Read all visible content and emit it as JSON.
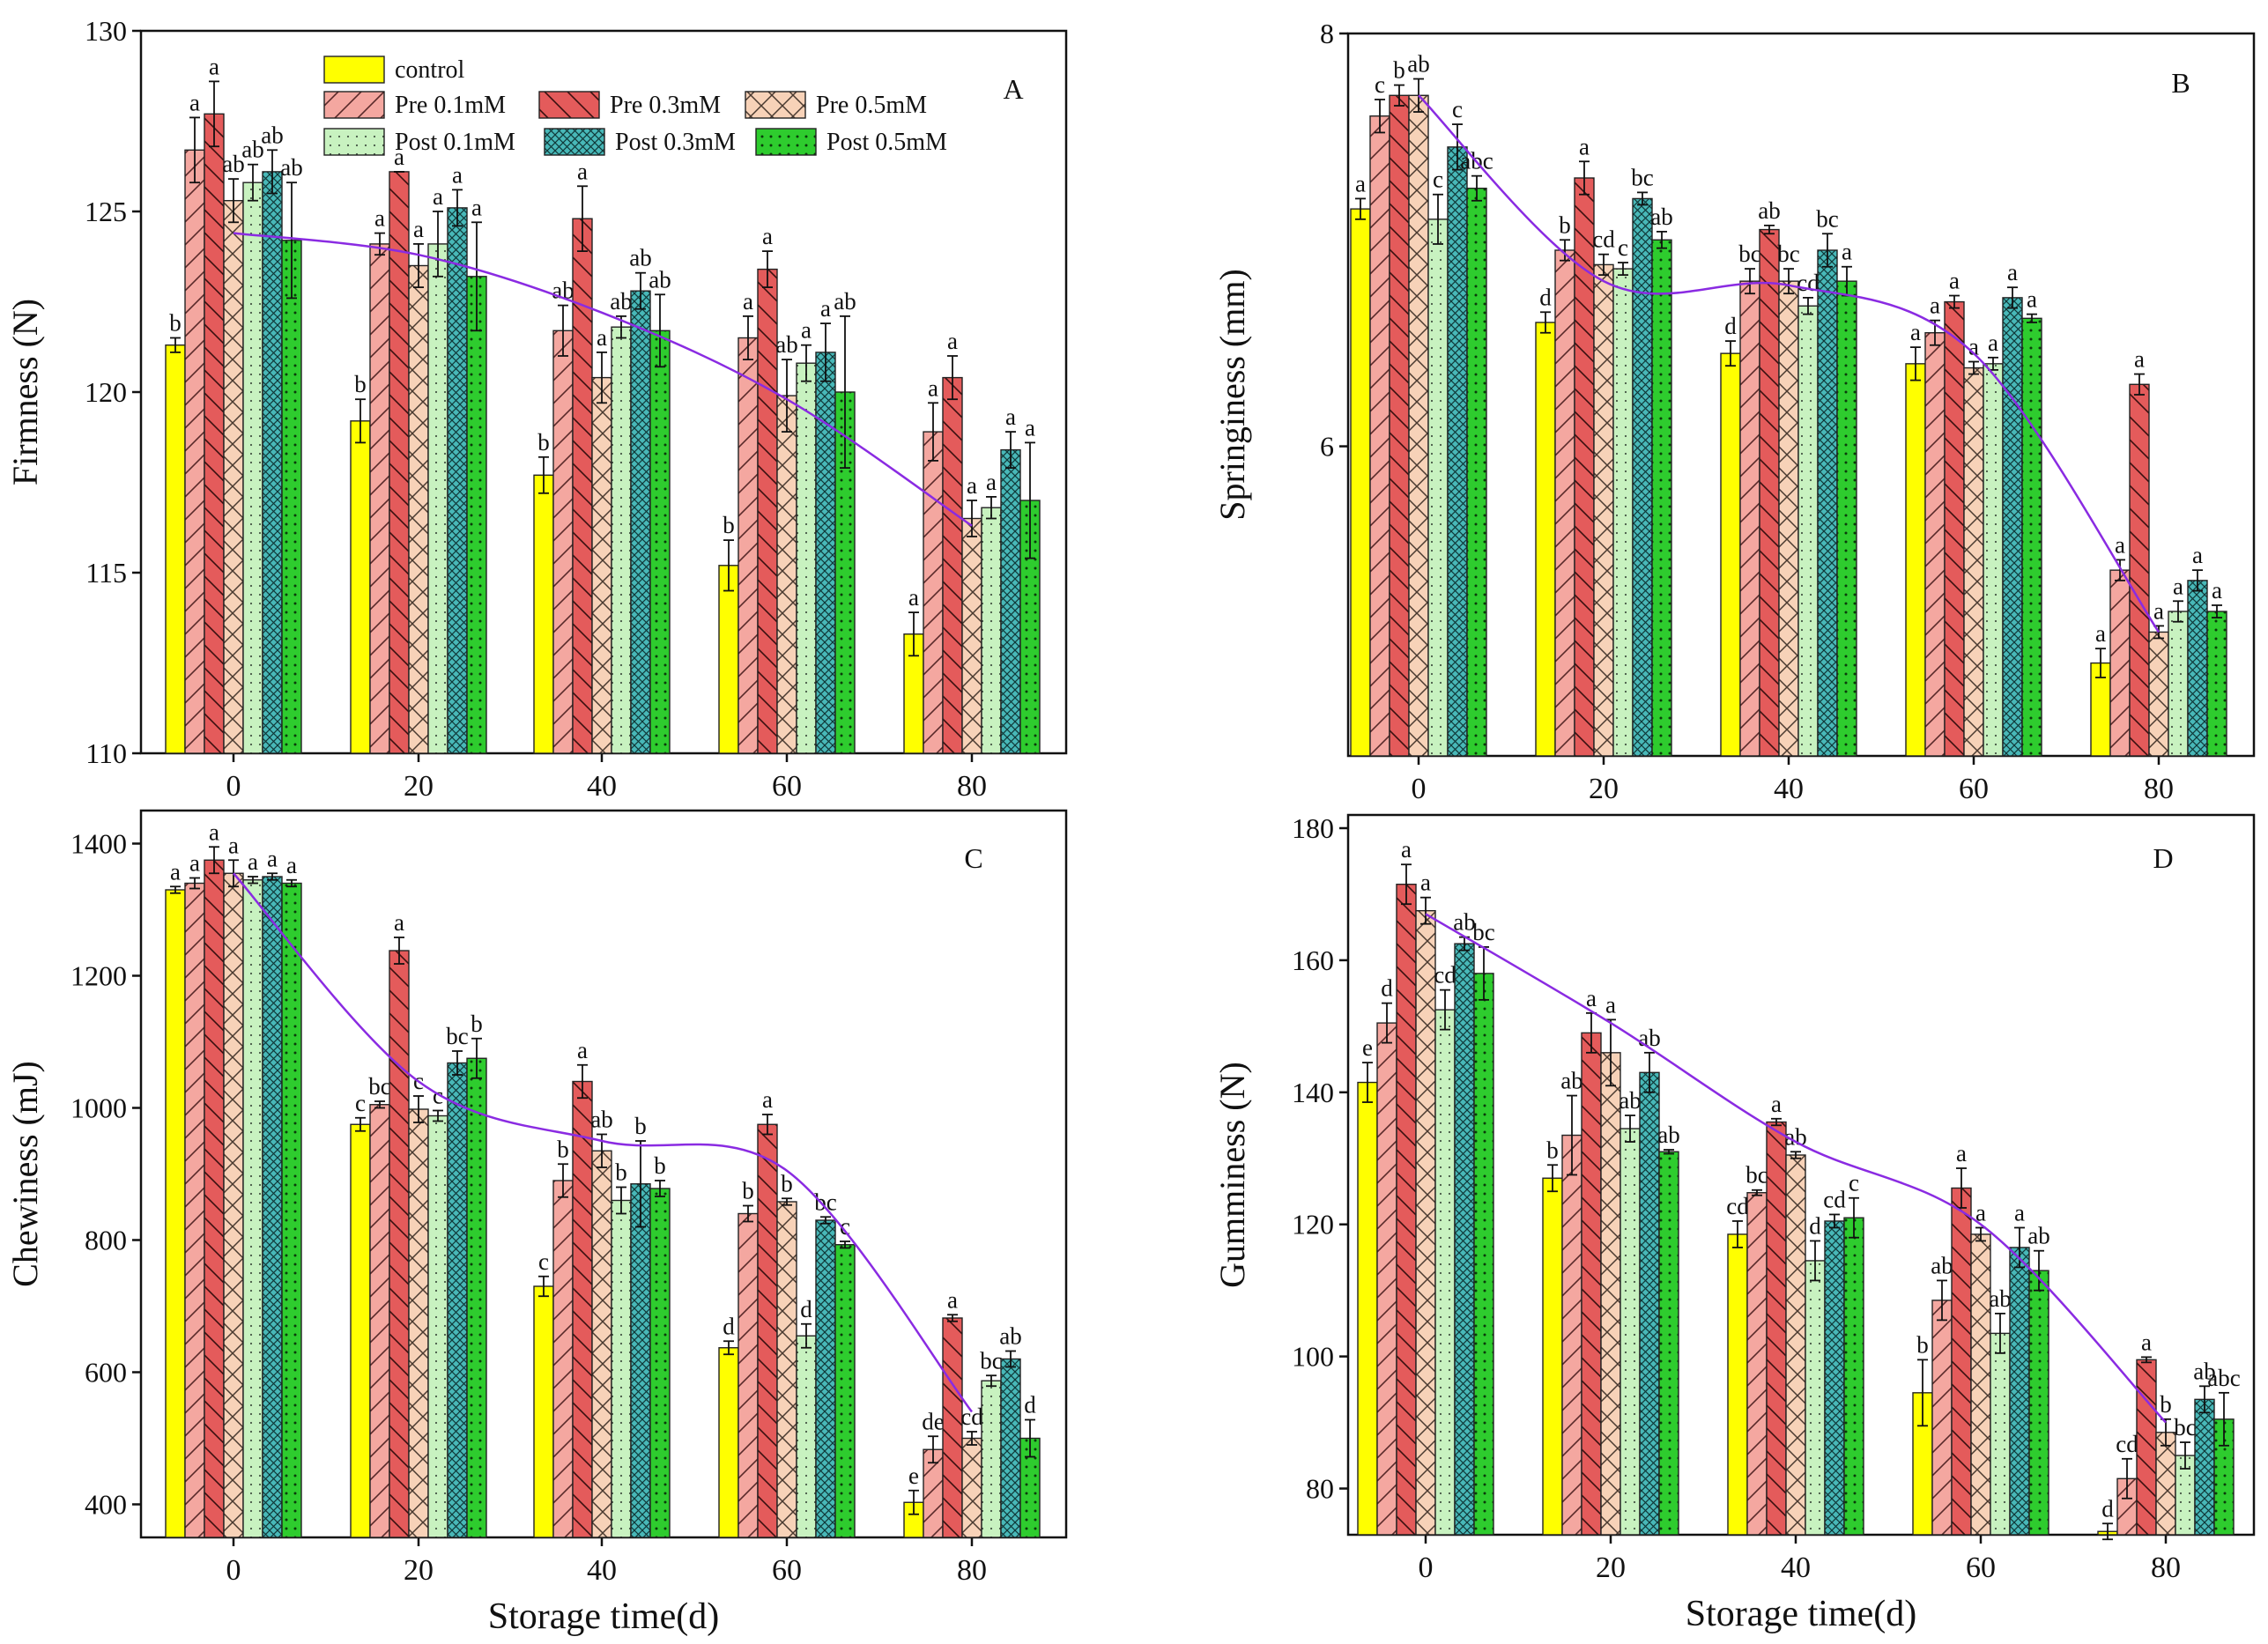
{
  "colors": {
    "control": "#ffff00",
    "pre01": "#f4a7a0",
    "pre03": "#e45b5b",
    "pre05": "#f7d2b8",
    "post01": "#c8f2c0",
    "post03": "#48b8b8",
    "post05": "#2ecc2e",
    "trend": "#8a2be2"
  },
  "legend": [
    "control",
    "Pre 0.1mM",
    "Pre 0.3mM",
    "Pre 0.5mM",
    "Post 0.1mM",
    "Post 0.3mM",
    "Post 0.5mM"
  ],
  "chart_data": [
    {
      "type": "bar",
      "panel": "A",
      "ylabel": "Firmness (N)",
      "xlabel": "",
      "categories": [
        "0",
        "20",
        "40",
        "60",
        "80"
      ],
      "ylim": [
        110,
        130
      ],
      "yticks": [
        "110",
        "115",
        "120",
        "125",
        "130"
      ],
      "series": [
        {
          "name": "control",
          "values": [
            121.3,
            119.2,
            117.7,
            115.2,
            113.3
          ],
          "errors": [
            0.2,
            0.6,
            0.5,
            0.7,
            0.6
          ],
          "labels": [
            "b",
            "b",
            "b",
            "b",
            "a"
          ]
        },
        {
          "name": "Pre 0.1mM",
          "values": [
            126.7,
            124.1,
            121.7,
            121.5,
            118.9
          ],
          "errors": [
            0.9,
            0.3,
            0.7,
            0.6,
            0.8
          ],
          "labels": [
            "a",
            "a",
            "ab",
            "a",
            "a"
          ]
        },
        {
          "name": "Pre 0.3mM",
          "values": [
            127.7,
            126.1,
            124.8,
            123.4,
            120.4
          ],
          "errors": [
            0.9,
            0.0,
            0.9,
            0.5,
            0.6
          ],
          "labels": [
            "a",
            "a",
            "a",
            "a",
            "a"
          ]
        },
        {
          "name": "Pre 0.5mM",
          "values": [
            125.3,
            123.5,
            120.4,
            119.9,
            116.5
          ],
          "errors": [
            0.6,
            0.6,
            0.7,
            1.0,
            0.5
          ],
          "labels": [
            "ab",
            "a",
            "a",
            "ab",
            "a"
          ]
        },
        {
          "name": "Post 0.1mM",
          "values": [
            125.8,
            124.1,
            121.8,
            120.8,
            116.8
          ],
          "errors": [
            0.5,
            0.9,
            0.3,
            0.5,
            0.3
          ],
          "labels": [
            "ab",
            "a",
            "ab",
            "a",
            "a"
          ]
        },
        {
          "name": "Post 0.3mM",
          "values": [
            126.1,
            125.1,
            122.8,
            121.1,
            118.4
          ],
          "errors": [
            0.6,
            0.5,
            0.5,
            0.8,
            0.5
          ],
          "labels": [
            "ab",
            "a",
            "ab",
            "a",
            "a"
          ]
        },
        {
          "name": "Post 0.5mM",
          "values": [
            124.2,
            123.2,
            121.7,
            120.0,
            117.0
          ],
          "errors": [
            1.6,
            1.5,
            1.0,
            2.1,
            1.6
          ],
          "labels": [
            "ab",
            "a",
            "ab",
            "ab",
            "a"
          ]
        }
      ],
      "trend": [
        124.4,
        123.8,
        122.2,
        119.8,
        116.3
      ]
    },
    {
      "type": "bar",
      "panel": "B",
      "ylabel": "Springiness (mm)",
      "xlabel": "",
      "categories": [
        "0",
        "20",
        "40",
        "60",
        "80"
      ],
      "ylim": [
        4.5,
        8
      ],
      "yticks": [
        "6",
        "8"
      ],
      "tickvalues": [
        6,
        8
      ],
      "series": [
        {
          "name": "control",
          "values": [
            7.15,
            6.6,
            6.45,
            6.4,
            4.95
          ],
          "errors": [
            0.05,
            0.05,
            0.06,
            0.08,
            0.07
          ],
          "labels": [
            "a",
            "d",
            "d",
            "a",
            "a"
          ]
        },
        {
          "name": "Pre 0.1mM",
          "values": [
            7.6,
            6.95,
            6.8,
            6.55,
            5.4
          ],
          "errors": [
            0.08,
            0.05,
            0.06,
            0.06,
            0.05
          ],
          "labels": [
            "c",
            "b",
            "bc",
            "a",
            "a"
          ]
        },
        {
          "name": "Pre 0.3mM",
          "values": [
            7.7,
            7.3,
            7.05,
            6.7,
            6.3
          ],
          "errors": [
            0.05,
            0.08,
            0.02,
            0.03,
            0.05
          ],
          "labels": [
            "b",
            "a",
            "ab",
            "a",
            "a"
          ]
        },
        {
          "name": "Pre 0.5mM",
          "values": [
            7.7,
            6.88,
            6.8,
            6.38,
            5.1
          ],
          "errors": [
            0.08,
            0.05,
            0.06,
            0.03,
            0.03
          ],
          "labels": [
            "ab",
            "cd",
            "bc",
            "a",
            "a"
          ]
        },
        {
          "name": "Post 0.1mM",
          "values": [
            7.1,
            6.86,
            6.68,
            6.4,
            5.2
          ],
          "errors": [
            0.12,
            0.03,
            0.04,
            0.03,
            0.05
          ],
          "labels": [
            "c",
            "c",
            "cd",
            "a",
            "a"
          ]
        },
        {
          "name": "Post 0.3mM",
          "values": [
            7.45,
            7.2,
            6.95,
            6.72,
            5.35
          ],
          "errors": [
            0.11,
            0.03,
            0.08,
            0.05,
            0.05
          ],
          "labels": [
            "c",
            "bc",
            "bc",
            "a",
            "a"
          ]
        },
        {
          "name": "Post 0.5mM",
          "values": [
            7.25,
            7.0,
            6.8,
            6.62,
            5.2
          ],
          "errors": [
            0.06,
            0.04,
            0.07,
            0.02,
            0.03
          ],
          "labels": [
            "abc",
            "ab",
            "a",
            "a",
            "a"
          ]
        }
      ],
      "trend": [
        7.7,
        6.8,
        6.78,
        6.45,
        5.1
      ]
    },
    {
      "type": "bar",
      "panel": "C",
      "ylabel": "Chewiness (mJ)",
      "xlabel": "Storage time(d)",
      "categories": [
        "0",
        "20",
        "40",
        "60",
        "80"
      ],
      "ylim": [
        350,
        1450
      ],
      "yticks": [
        "400",
        "600",
        "800",
        "1000",
        "1200",
        "1400"
      ],
      "series": [
        {
          "name": "control",
          "values": [
            1330,
            975,
            730,
            637,
            403
          ],
          "errors": [
            5,
            10,
            15,
            10,
            18
          ],
          "labels": [
            "a",
            "c",
            "c",
            "d",
            "e"
          ]
        },
        {
          "name": "Pre 0.1mM",
          "values": [
            1340,
            1005,
            890,
            840,
            483
          ],
          "errors": [
            8,
            5,
            25,
            12,
            20
          ],
          "labels": [
            "a",
            "bc",
            "b",
            "b",
            "de"
          ]
        },
        {
          "name": "Pre 0.3mM",
          "values": [
            1375,
            1238,
            1040,
            975,
            682
          ],
          "errors": [
            20,
            20,
            25,
            15,
            5
          ],
          "labels": [
            "a",
            "a",
            "a",
            "a",
            "a"
          ]
        },
        {
          "name": "Pre 0.5mM",
          "values": [
            1355,
            998,
            935,
            858,
            500
          ],
          "errors": [
            20,
            20,
            25,
            5,
            10
          ],
          "labels": [
            "a",
            "c",
            "ab",
            "b",
            "cd"
          ]
        },
        {
          "name": "Post 0.1mM",
          "values": [
            1345,
            988,
            860,
            655,
            587
          ],
          "errors": [
            5,
            8,
            20,
            18,
            8
          ],
          "labels": [
            "a",
            "c",
            "b",
            "d",
            "bc"
          ]
        },
        {
          "name": "Post 0.3mM",
          "values": [
            1350,
            1068,
            885,
            830,
            620
          ],
          "errors": [
            5,
            18,
            65,
            5,
            12
          ],
          "labels": [
            "a",
            "bc",
            "b",
            "bc",
            "ab"
          ]
        },
        {
          "name": "Post 0.5mM",
          "values": [
            1340,
            1075,
            878,
            793,
            500
          ],
          "errors": [
            5,
            30,
            12,
            5,
            28
          ],
          "labels": [
            "a",
            "b",
            "b",
            "c",
            "d"
          ]
        }
      ],
      "trend": [
        1355,
        1040,
        950,
        905,
        540
      ]
    },
    {
      "type": "bar",
      "panel": "D",
      "ylabel": "Gumminess (N)",
      "xlabel": "Storage time(d)",
      "categories": [
        "0",
        "20",
        "40",
        "60",
        "80"
      ],
      "ylim": [
        73,
        182
      ],
      "yticks": [
        "80",
        "100",
        "120",
        "140",
        "160",
        "180"
      ],
      "series": [
        {
          "name": "control",
          "values": [
            141.5,
            127,
            118.5,
            94.5,
            73.5
          ],
          "errors": [
            3,
            2,
            2,
            5,
            1.2
          ],
          "labels": [
            "e",
            "b",
            "cd",
            "b",
            "d"
          ]
        },
        {
          "name": "Pre 0.1mM",
          "values": [
            150.5,
            133.5,
            124.8,
            108.5,
            81.5
          ],
          "errors": [
            3,
            6,
            0.4,
            3,
            3
          ],
          "labels": [
            "d",
            "ab",
            "bc",
            "ab",
            "cd"
          ]
        },
        {
          "name": "Pre 0.3mM",
          "values": [
            171.5,
            149,
            135.5,
            125.5,
            99.5
          ],
          "errors": [
            3,
            3,
            0.5,
            3,
            0.4
          ],
          "labels": [
            "a",
            "a",
            "a",
            "a",
            "a"
          ]
        },
        {
          "name": "Pre 0.5mM",
          "values": [
            167.5,
            146,
            130.5,
            118.5,
            88.5
          ],
          "errors": [
            2,
            5,
            0.5,
            1,
            2
          ],
          "labels": [
            "a",
            "a",
            "ab",
            "a",
            "b"
          ]
        },
        {
          "name": "Post 0.1mM",
          "values": [
            152.5,
            134.5,
            114.5,
            103.5,
            85
          ],
          "errors": [
            3,
            2,
            3,
            3,
            2
          ],
          "labels": [
            "cd",
            "ab",
            "d",
            "ab",
            "bc"
          ]
        },
        {
          "name": "Post 0.3mM",
          "values": [
            162.5,
            143,
            120.5,
            116.5,
            93.5
          ],
          "errors": [
            1,
            3,
            1,
            3,
            2
          ],
          "labels": [
            "ab",
            "ab",
            "cd",
            "a",
            "ab"
          ]
        },
        {
          "name": "Post 0.5mM",
          "values": [
            158,
            131,
            121,
            113,
            90.5
          ],
          "errors": [
            4,
            0.3,
            3,
            3,
            4
          ],
          "labels": [
            "bc",
            "ab",
            "c",
            "ab",
            "abc"
          ]
        }
      ],
      "trend": [
        167,
        150.5,
        132.5,
        120,
        90
      ]
    }
  ]
}
